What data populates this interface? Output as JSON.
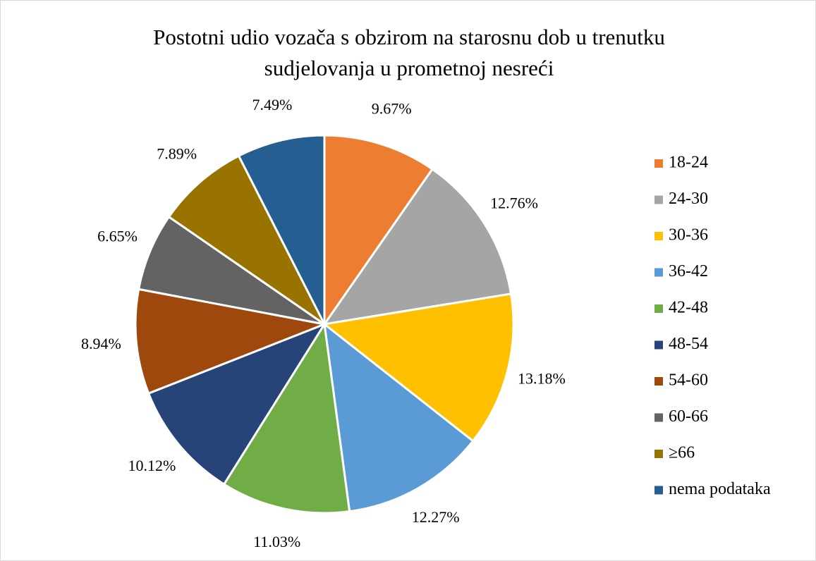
{
  "chart_data": {
    "type": "pie",
    "title": [
      "Postotni udio vozača s obzirom na starosnu dob u trenutku",
      "sudjelovanja u prometnoj nesreći"
    ],
    "categories": [
      "18-24",
      "24-30",
      "30-36",
      "36-42",
      "42-48",
      "48-54",
      "54-60",
      "60-66",
      "≥66",
      "nema podataka"
    ],
    "values": [
      9.67,
      12.76,
      13.18,
      12.27,
      11.03,
      10.12,
      8.94,
      6.65,
      7.89,
      7.49
    ],
    "value_labels": [
      "9.67%",
      "12.76%",
      "13.18%",
      "12.27%",
      "11.03%",
      "10.12%",
      "8.94%",
      "6.65%",
      "7.89%",
      "7.49%"
    ],
    "colors": [
      "#ED7D31",
      "#A5A5A5",
      "#FFC000",
      "#5B9BD5",
      "#70AD47",
      "#264478",
      "#9E480E",
      "#636363",
      "#997300",
      "#255E91"
    ],
    "legend": "right"
  }
}
